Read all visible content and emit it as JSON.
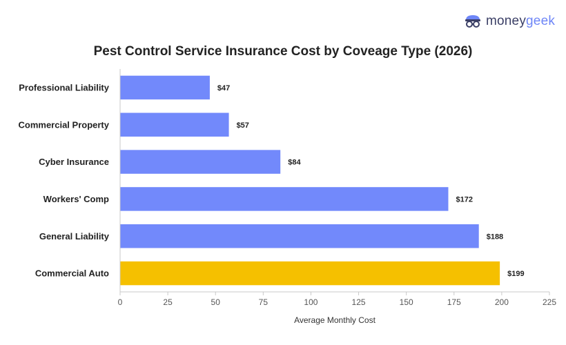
{
  "brand": {
    "logo_text_money": "money",
    "logo_text_geek": "geek",
    "colors": {
      "money": "#3b3f66",
      "geek": "#6e86f7"
    }
  },
  "chart_data": {
    "type": "bar",
    "orientation": "horizontal",
    "title": "Pest Control Service Insurance Cost by Coveage Type (2026)",
    "xlabel": "Average Monthly Cost",
    "ylabel": "",
    "categories": [
      "Professional Liability",
      "Commercial Property",
      "Cyber Insurance",
      "Workers' Comp",
      "General Liability",
      "Commercial Auto"
    ],
    "values": [
      47,
      57,
      84,
      172,
      188,
      199
    ],
    "data_labels": [
      "$47",
      "$57",
      "$84",
      "$172",
      "$188",
      "$199"
    ],
    "xlim": [
      0,
      225
    ],
    "xticks": [
      0,
      25,
      50,
      75,
      100,
      125,
      150,
      175,
      200,
      225
    ],
    "grid": false,
    "legend": "none",
    "colors": {
      "default": "#7289fb",
      "highlight": "#f5c000"
    },
    "highlight_category": "Commercial Auto"
  }
}
